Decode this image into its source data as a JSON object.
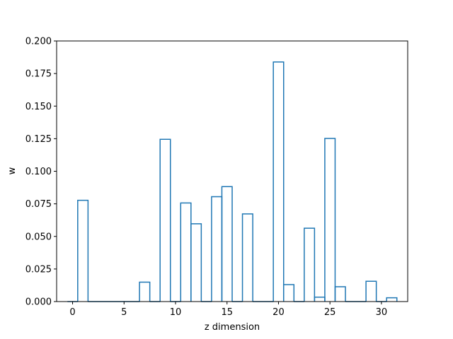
{
  "chart_data": {
    "type": "bar",
    "style": "step-histogram",
    "title": "",
    "xlabel": "z dimension",
    "ylabel": "w",
    "xlim": [
      -1.55,
      32.55
    ],
    "ylim": [
      0,
      0.2
    ],
    "xticks": [
      0,
      5,
      10,
      15,
      20,
      25,
      30
    ],
    "yticks": [
      0.0,
      0.025,
      0.05,
      0.075,
      0.1,
      0.125,
      0.15,
      0.175,
      0.2
    ],
    "ytick_labels": [
      "0.000",
      "0.025",
      "0.050",
      "0.075",
      "0.100",
      "0.125",
      "0.150",
      "0.175",
      "0.200"
    ],
    "grid": false,
    "line_color": "#1f77b4",
    "x": [
      0,
      1,
      2,
      3,
      4,
      5,
      6,
      7,
      8,
      9,
      10,
      11,
      12,
      13,
      14,
      15,
      16,
      17,
      18,
      19,
      20,
      21,
      22,
      23,
      24,
      25,
      26,
      27,
      28,
      29,
      30,
      31
    ],
    "values": [
      0,
      0.0777,
      0,
      0,
      0,
      0,
      0,
      0.0149,
      0,
      0.1245,
      0,
      0.0757,
      0.0597,
      0,
      0.0805,
      0.0882,
      0,
      0.0673,
      0,
      0,
      0.1839,
      0.013,
      0,
      0.0563,
      0.0034,
      0.1252,
      0.0114,
      0,
      0,
      0.0156,
      0,
      0.0029
    ]
  }
}
